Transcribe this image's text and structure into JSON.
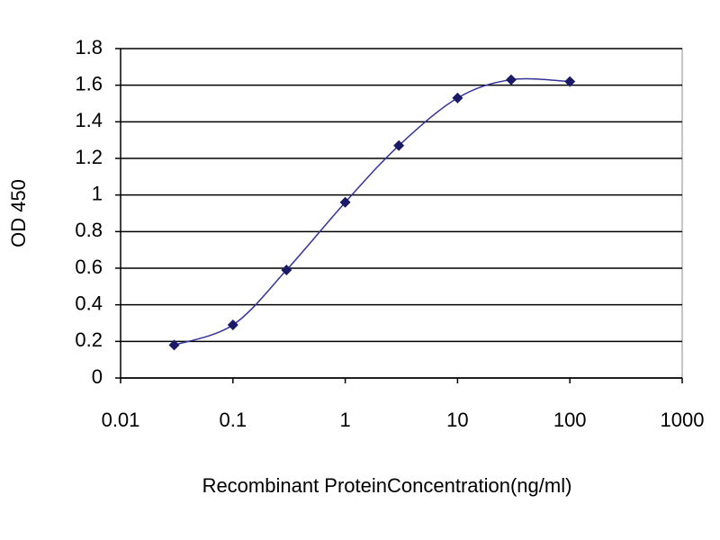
{
  "chart_data": {
    "type": "line",
    "x_label": "Recombinant ProteinConcentration(ng/ml)",
    "y_label": "OD 450",
    "x": [
      0.03,
      0.1,
      0.3,
      1,
      3,
      10,
      30,
      100
    ],
    "series": [
      {
        "color": "#333399",
        "values": [
          0.18,
          0.29,
          0.59,
          0.96,
          1.27,
          1.53,
          1.63,
          1.62
        ]
      }
    ],
    "x_scale": "log",
    "xlim": [
      0.01,
      1000
    ],
    "xticks": [
      0.01,
      0.1,
      1,
      10,
      100,
      1000
    ],
    "ylim": [
      0,
      1.8
    ],
    "yticks": [
      0,
      0.2,
      0.4,
      0.6,
      0.8,
      1,
      1.2,
      1.4,
      1.6,
      1.8
    ],
    "grid": true
  }
}
